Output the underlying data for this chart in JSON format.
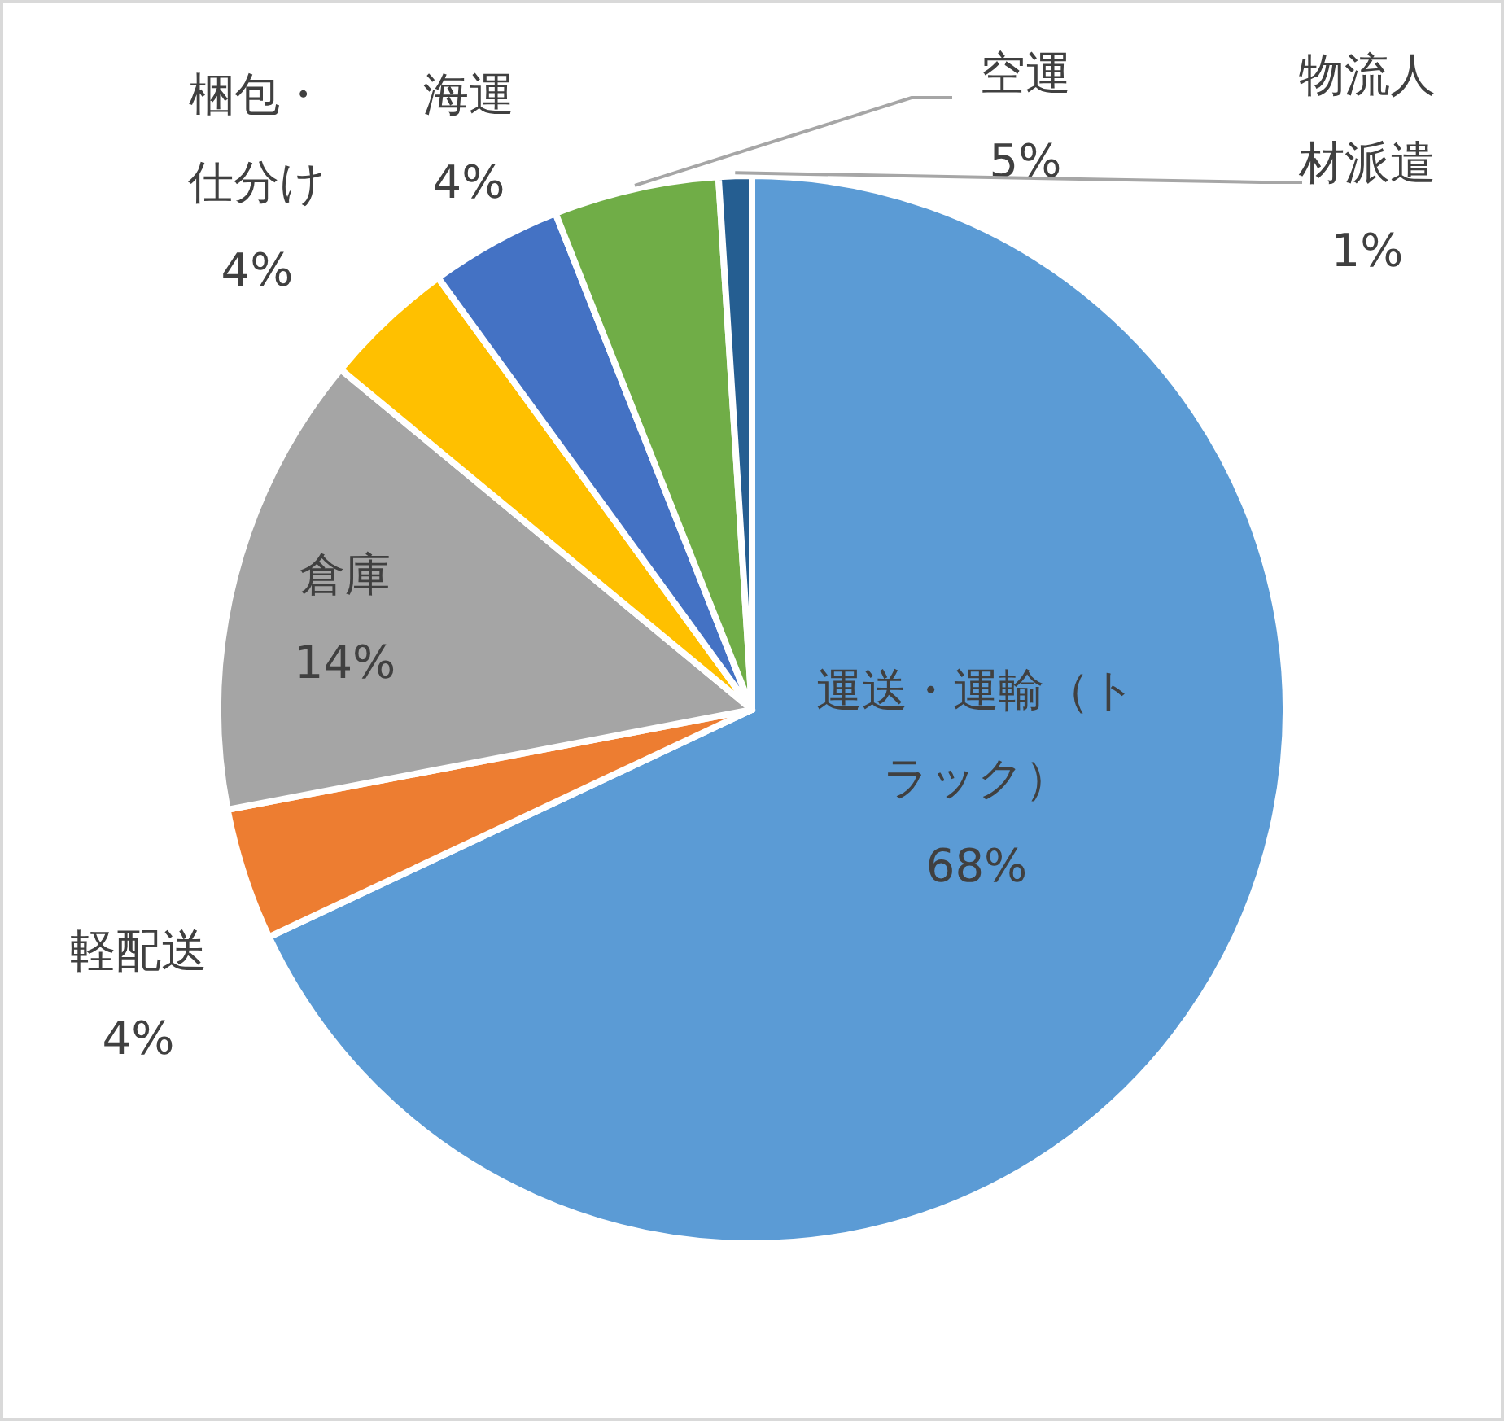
{
  "chart_data": {
    "type": "pie",
    "categories": [
      "運送・運輸（トラック）",
      "軽配送",
      "倉庫",
      "梱包・仕分け",
      "海運",
      "空運",
      "物流人材派遣"
    ],
    "values": [
      68,
      4,
      14,
      4,
      4,
      5,
      1
    ],
    "value_labels": [
      "68%",
      "4%",
      "14%",
      "4%",
      "4%",
      "5%",
      "1%"
    ],
    "colors": [
      "#5b9bd5",
      "#ed7d31",
      "#a5a5a5",
      "#ffc000",
      "#4472c4",
      "#70ad47",
      "#255e91"
    ]
  }
}
